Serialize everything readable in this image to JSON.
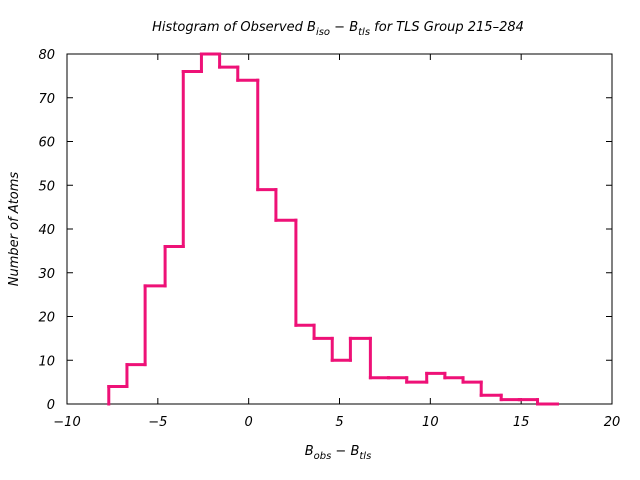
{
  "chart_data": {
    "type": "histogram",
    "title": {
      "prefix": "Histogram of Observed B",
      "sub1": "iso",
      "middle": " − B",
      "sub2": "tls",
      "suffix": " for TLS Group 215–284"
    },
    "xlabel": {
      "a": "B",
      "sub1": "obs",
      "b": " − B",
      "sub2": "tls"
    },
    "ylabel": "Number of Atoms",
    "xlim": [
      -10,
      20
    ],
    "ylim": [
      0,
      80
    ],
    "xticks": [
      -10,
      -5,
      0,
      5,
      10,
      15,
      20
    ],
    "yticks": [
      0,
      10,
      20,
      30,
      40,
      50,
      60,
      70,
      80
    ],
    "xtick_labels": [
      "−10",
      "−5",
      "0",
      "5",
      "10",
      "15",
      "20"
    ],
    "ytick_labels": [
      "0",
      "10",
      "20",
      "30",
      "40",
      "50",
      "60",
      "70",
      "80"
    ],
    "bin_edges": [
      -7.7,
      -6.7,
      -5.7,
      -4.6,
      -3.6,
      -2.6,
      -1.6,
      -0.6,
      0.5,
      1.5,
      2.6,
      3.6,
      4.6,
      5.6,
      6.7,
      7.7,
      8.7,
      9.8,
      10.8,
      11.8,
      12.8,
      13.9,
      14.9,
      15.9,
      17.0
    ],
    "counts": [
      4,
      9,
      27,
      36,
      76,
      80,
      77,
      74,
      49,
      42,
      18,
      15,
      10,
      15,
      6,
      6,
      5,
      7,
      6,
      5,
      2,
      1,
      1,
      0
    ],
    "color": "#ee1177",
    "grid": false,
    "legend": "none"
  }
}
